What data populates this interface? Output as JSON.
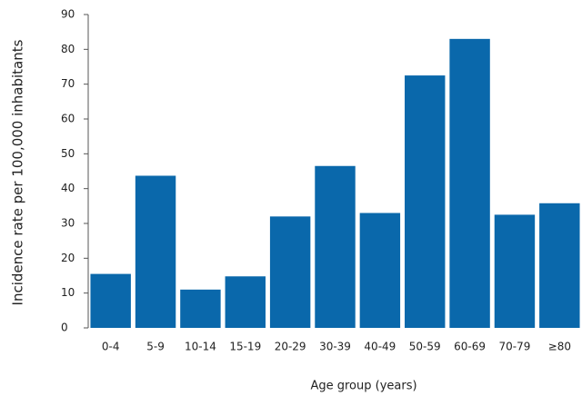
{
  "chart_data": {
    "type": "bar",
    "x_label": "Age group (years)",
    "y_label": "Incidence rate per 100,000 inhabitants",
    "categories": [
      "0-4",
      "5-9",
      "10-14",
      "15-19",
      "20-29",
      "30-39",
      "40-49",
      "50-59",
      "60-69",
      "70-79",
      "≥80"
    ],
    "values": [
      15.5,
      43.7,
      11,
      14.8,
      32,
      46.5,
      33,
      72.5,
      83,
      32.5,
      35.8
    ],
    "color": "#0a68ab",
    "ylim": [
      0,
      90
    ],
    "yticks": [
      0,
      10,
      20,
      30,
      40,
      50,
      60,
      70,
      80,
      90
    ],
    "grid": false
  }
}
